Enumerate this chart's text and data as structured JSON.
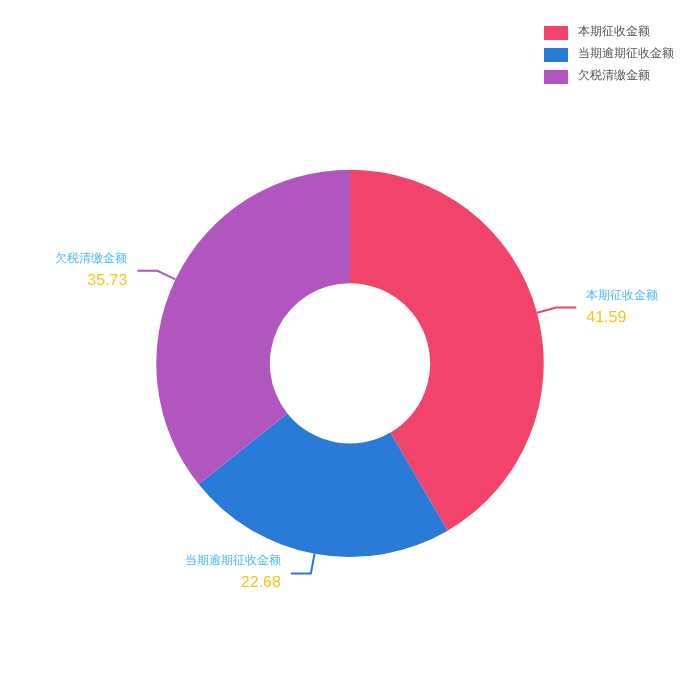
{
  "chart_data": {
    "type": "donut",
    "categories": [
      "本期征收金额",
      "当期逾期征收金额",
      "欠税清缴金额"
    ],
    "values": [
      41.59,
      22.68,
      35.73
    ],
    "colors": [
      "#f2436a",
      "#2a7bd8",
      "#b156bf"
    ],
    "data_labels": true,
    "legend": "top right"
  }
}
